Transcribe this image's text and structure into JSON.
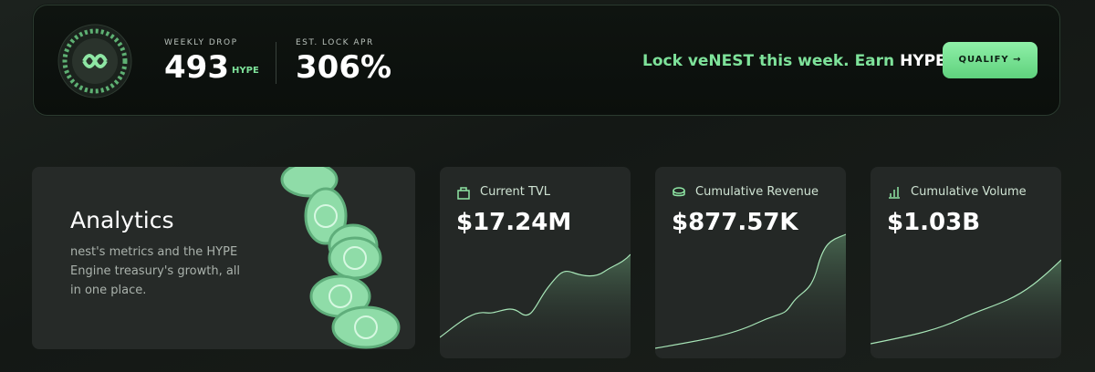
{
  "banner": {
    "weekly_drop_label": "WEEKLY DROP",
    "weekly_drop_value": "493",
    "weekly_drop_unit": "HYPE",
    "apr_label": "EST. LOCK APR",
    "apr_value": "306%",
    "promo_text": "Lock veNEST this week. Earn ",
    "promo_highlight": "HYPE.",
    "button": "QUALIFY"
  },
  "analytics": {
    "title": "Analytics",
    "description": "nest's metrics and the HYPE Engine treasury's growth, all in one place."
  },
  "cards": [
    {
      "label": "Current TVL",
      "value": "$17.24M"
    },
    {
      "label": "Cumulative Revenue",
      "value": "$877.57K"
    },
    {
      "label": "Cumulative Volume",
      "value": "$1.03B"
    }
  ]
}
